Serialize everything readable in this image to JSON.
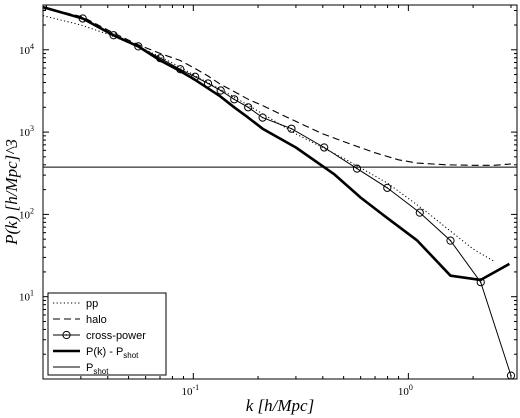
{
  "chart_data": {
    "type": "line",
    "xscale": "log",
    "yscale": "log",
    "xlim": [
      0.02,
      3.2
    ],
    "ylim": [
      1.0,
      35000
    ],
    "xlabel": "k [h/Mpc]",
    "ylabel": "P(k) [h/Mpc]^3",
    "x_ticks": [
      {
        "value": 0.1,
        "base": "10",
        "exp": "-1"
      },
      {
        "value": 1,
        "base": "10",
        "exp": "0"
      }
    ],
    "y_ticks": [
      {
        "value": 10,
        "base": "10",
        "exp": "1"
      },
      {
        "value": 100,
        "base": "10",
        "exp": "2"
      },
      {
        "value": 1000,
        "base": "10",
        "exp": "3"
      },
      {
        "value": 10000,
        "base": "10",
        "exp": "4"
      }
    ],
    "legend_position": "bottom-left",
    "grid": false,
    "series": [
      {
        "name": "pp",
        "style": "dotted",
        "x": [
          0.02,
          0.03,
          0.04,
          0.06,
          0.08,
          0.1,
          0.15,
          0.2,
          0.3,
          0.5,
          0.8,
          1.2,
          1.6,
          2.0,
          2.5
        ],
        "y": [
          26000,
          20000,
          15500,
          10000,
          6900,
          5000,
          2800,
          1800,
          950,
          480,
          240,
          110,
          60,
          38,
          27
        ]
      },
      {
        "name": "halo",
        "style": "dashed",
        "x": [
          0.02,
          0.0306,
          0.0426,
          0.0555,
          0.0702,
          0.087,
          0.102,
          0.117,
          0.134,
          0.155,
          0.18,
          0.21,
          0.3,
          0.4,
          0.55,
          0.7,
          0.9,
          1.1,
          1.5,
          2.0,
          2.5,
          3.0
        ],
        "y": [
          33000,
          25000,
          16000,
          11500,
          9000,
          7400,
          5900,
          4800,
          3800,
          3100,
          2500,
          2100,
          1350,
          950,
          700,
          560,
          460,
          420,
          400,
          395,
          395,
          410
        ]
      },
      {
        "name": "cross-power",
        "style": "solid-circles",
        "x": [
          0.02,
          0.0306,
          0.0426,
          0.0555,
          0.0702,
          0.087,
          0.102,
          0.117,
          0.134,
          0.155,
          0.18,
          0.21,
          0.286,
          0.406,
          0.577,
          0.798,
          1.13,
          1.57,
          2.17,
          3.0
        ],
        "y": [
          33000,
          24000,
          15000,
          11000,
          7900,
          5800,
          4700,
          3900,
          3200,
          2500,
          2000,
          1500,
          1100,
          650,
          360,
          210,
          105,
          48,
          15,
          1.1
        ]
      },
      {
        "name": "P(k) - P_shot",
        "style": "thick",
        "x": [
          0.02,
          0.0306,
          0.0426,
          0.0555,
          0.0702,
          0.087,
          0.102,
          0.117,
          0.134,
          0.155,
          0.18,
          0.21,
          0.3,
          0.45,
          0.6,
          0.8,
          1.1,
          1.57,
          2.17,
          2.95
        ],
        "y": [
          33000,
          24000,
          15000,
          11000,
          7400,
          5500,
          4300,
          3400,
          2700,
          2000,
          1500,
          1100,
          650,
          310,
          160,
          90,
          48,
          18,
          16,
          25
        ]
      },
      {
        "name": "P_shot",
        "style": "thin",
        "x": [
          0.02,
          3.2
        ],
        "y": [
          375,
          375
        ]
      }
    ]
  }
}
